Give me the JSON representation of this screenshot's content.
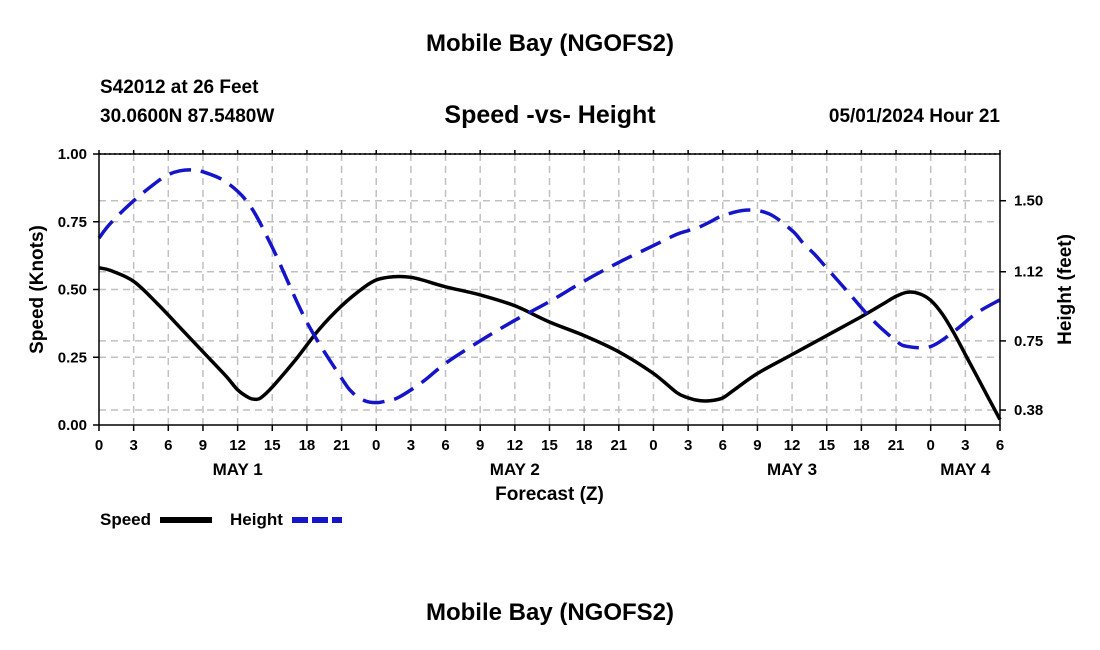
{
  "header": {
    "title": "Mobile Bay (NGOFS2)",
    "station": "S42012 at 26 Feet",
    "coords": "30.0600N  87.5480W",
    "subtitle": "Speed -vs- Height",
    "datetime": "05/01/2024 Hour 21"
  },
  "footer": {
    "title": "Mobile Bay (NGOFS2)"
  },
  "colors": {
    "speed": "#000000",
    "height": "#1414c8",
    "grid": "#c0c0c0"
  },
  "chart_data": {
    "type": "line",
    "xlabel": "Forecast (Z)",
    "ylabel_left": "Speed (Knots)",
    "ylabel_right": "Height (feet)",
    "x_unit": "hours from 05/01 00Z",
    "xlim": [
      0,
      78
    ],
    "ylim_left": [
      0,
      1
    ],
    "ylim_right": [
      0.3,
      1.75
    ],
    "x_ticks": [
      0,
      3,
      6,
      9,
      12,
      15,
      18,
      21,
      24,
      27,
      30,
      33,
      36,
      39,
      42,
      45,
      48,
      51,
      54,
      57,
      60,
      63,
      66,
      69,
      72,
      75,
      78
    ],
    "x_tick_labels": [
      "0",
      "3",
      "6",
      "9",
      "12",
      "15",
      "18",
      "21",
      "0",
      "3",
      "6",
      "9",
      "12",
      "15",
      "18",
      "21",
      "0",
      "3",
      "6",
      "9",
      "12",
      "15",
      "18",
      "21",
      "0",
      "3",
      "6"
    ],
    "day_labels": [
      {
        "x": 12,
        "label": "MAY 1"
      },
      {
        "x": 36,
        "label": "MAY 2"
      },
      {
        "x": 60,
        "label": "MAY 3"
      },
      {
        "x": 75,
        "label": "MAY 4"
      }
    ],
    "y_left_ticks": [
      0.0,
      0.25,
      0.5,
      0.75,
      1.0
    ],
    "y_left_tick_labels": [
      "0.00",
      "0.25",
      "0.50",
      "0.75",
      "1.00"
    ],
    "y_right_ticks": [
      0.38,
      0.75,
      1.12,
      1.5
    ],
    "y_right_tick_labels": [
      "0.38",
      "0.75",
      "1.12",
      "1.50"
    ],
    "legend": [
      {
        "name": "Speed",
        "style": "solid"
      },
      {
        "name": "Height",
        "style": "dashed"
      }
    ],
    "series": [
      {
        "name": "Speed",
        "axis": "left",
        "x": [
          0,
          1,
          3,
          5,
          7,
          9,
          11,
          12,
          13,
          13.5,
          14,
          15,
          17,
          19,
          21,
          23,
          24,
          25,
          26,
          27,
          28,
          30,
          33,
          36,
          39,
          42,
          45,
          48,
          50,
          51,
          52,
          53,
          54,
          55,
          57,
          60,
          63,
          66,
          68,
          69,
          70,
          71,
          72,
          73,
          74,
          75,
          76,
          77,
          78
        ],
        "values": [
          0.58,
          0.57,
          0.53,
          0.45,
          0.36,
          0.27,
          0.18,
          0.13,
          0.1,
          0.095,
          0.1,
          0.14,
          0.24,
          0.35,
          0.44,
          0.51,
          0.535,
          0.545,
          0.548,
          0.545,
          0.535,
          0.51,
          0.48,
          0.44,
          0.38,
          0.33,
          0.27,
          0.19,
          0.12,
          0.1,
          0.09,
          0.09,
          0.1,
          0.13,
          0.19,
          0.26,
          0.33,
          0.4,
          0.45,
          0.475,
          0.49,
          0.485,
          0.46,
          0.41,
          0.34,
          0.26,
          0.18,
          0.1,
          0.02
        ]
      },
      {
        "name": "Height",
        "axis": "right",
        "x": [
          0,
          1,
          3,
          5,
          6,
          7,
          8,
          9,
          11,
          13,
          15,
          18,
          21,
          22,
          23,
          24,
          25,
          26,
          28,
          30,
          33,
          36,
          39,
          42,
          45,
          48,
          50,
          51,
          52,
          53,
          54,
          56,
          58,
          60,
          61,
          62,
          63,
          65,
          67,
          69,
          70,
          72,
          74,
          76,
          78
        ],
        "values": [
          1.3,
          1.38,
          1.5,
          1.6,
          1.64,
          1.66,
          1.665,
          1.655,
          1.6,
          1.48,
          1.25,
          0.85,
          0.55,
          0.47,
          0.43,
          0.42,
          0.43,
          0.45,
          0.53,
          0.63,
          0.75,
          0.86,
          0.96,
          1.07,
          1.17,
          1.26,
          1.32,
          1.34,
          1.36,
          1.39,
          1.42,
          1.45,
          1.43,
          1.34,
          1.27,
          1.21,
          1.14,
          1.0,
          0.86,
          0.75,
          0.72,
          0.72,
          0.8,
          0.9,
          0.97
        ]
      }
    ]
  }
}
